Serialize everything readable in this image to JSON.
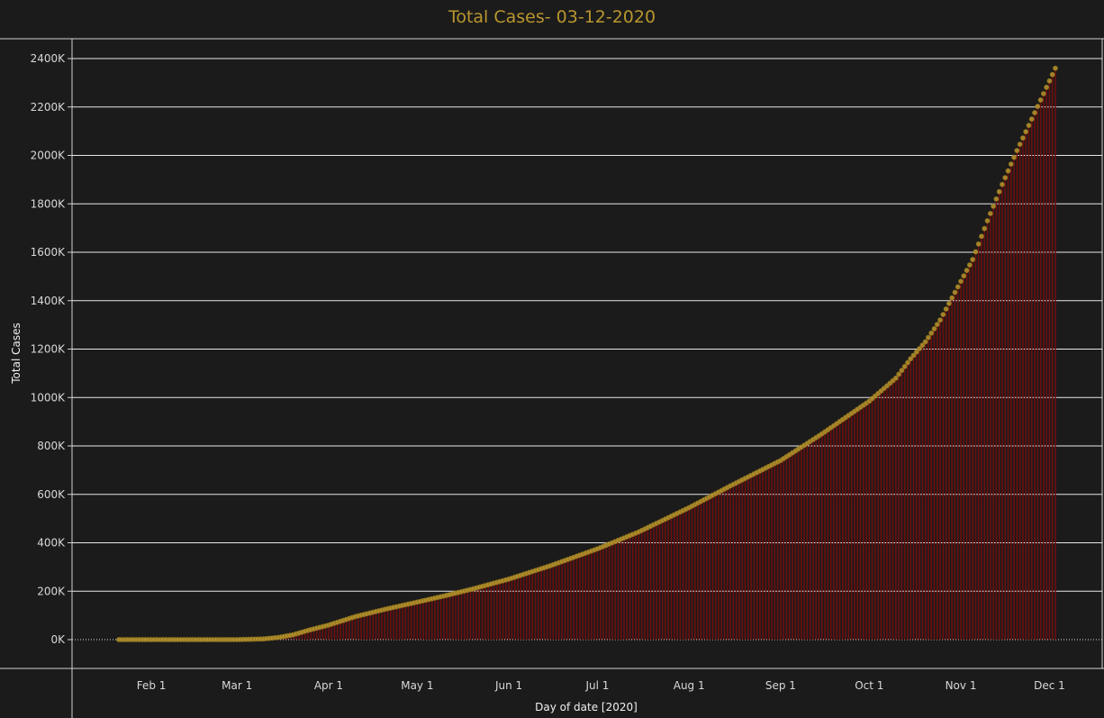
{
  "chart_data": {
    "type": "area",
    "title": "Total Cases- 03-12-2020",
    "xlabel": "Day of date [2020]",
    "ylabel": "Total Cases",
    "x_ticks": [
      "Feb 1",
      "Mar 1",
      "Apr 1",
      "May 1",
      "Jun 1",
      "Jul 1",
      "Aug 1",
      "Sep 1",
      "Oct 1",
      "Nov 1",
      "Dec 1"
    ],
    "y_ticks": [
      "0K",
      "200K",
      "400K",
      "600K",
      "800K",
      "1000K",
      "1200K",
      "1400K",
      "1600K",
      "1800K",
      "2000K",
      "2200K",
      "2400K"
    ],
    "ylim": [
      0,
      2400000
    ],
    "xlim": [
      "2020-01-21",
      "2020-12-03"
    ],
    "grid": true,
    "colors": {
      "background": "#1b1b1b",
      "title": "#b8962e",
      "marker": "#b8962e",
      "area": "#6e0e0e",
      "grid": "#e8e8e8"
    },
    "series": [
      {
        "markers": "circle",
        "x": [
          "2020-01-21",
          "2020-02-01",
          "2020-02-15",
          "2020-03-01",
          "2020-03-10",
          "2020-03-15",
          "2020-03-20",
          "2020-03-25",
          "2020-04-01",
          "2020-04-10",
          "2020-04-20",
          "2020-05-01",
          "2020-05-10",
          "2020-05-20",
          "2020-06-01",
          "2020-06-15",
          "2020-07-01",
          "2020-07-15",
          "2020-08-01",
          "2020-08-15",
          "2020-09-01",
          "2020-09-15",
          "2020-10-01",
          "2020-10-10",
          "2020-10-15",
          "2020-10-20",
          "2020-10-25",
          "2020-11-01",
          "2020-11-05",
          "2020-11-10",
          "2020-11-15",
          "2020-11-20",
          "2020-11-25",
          "2020-12-03"
        ],
        "y": [
          0,
          0,
          0,
          0,
          3000,
          9000,
          20000,
          38000,
          60000,
          95000,
          125000,
          155000,
          180000,
          210000,
          250000,
          305000,
          375000,
          445000,
          545000,
          635000,
          740000,
          850000,
          985000,
          1080000,
          1160000,
          1230000,
          1320000,
          1480000,
          1570000,
          1730000,
          1880000,
          2020000,
          2150000,
          2360000
        ]
      }
    ]
  }
}
